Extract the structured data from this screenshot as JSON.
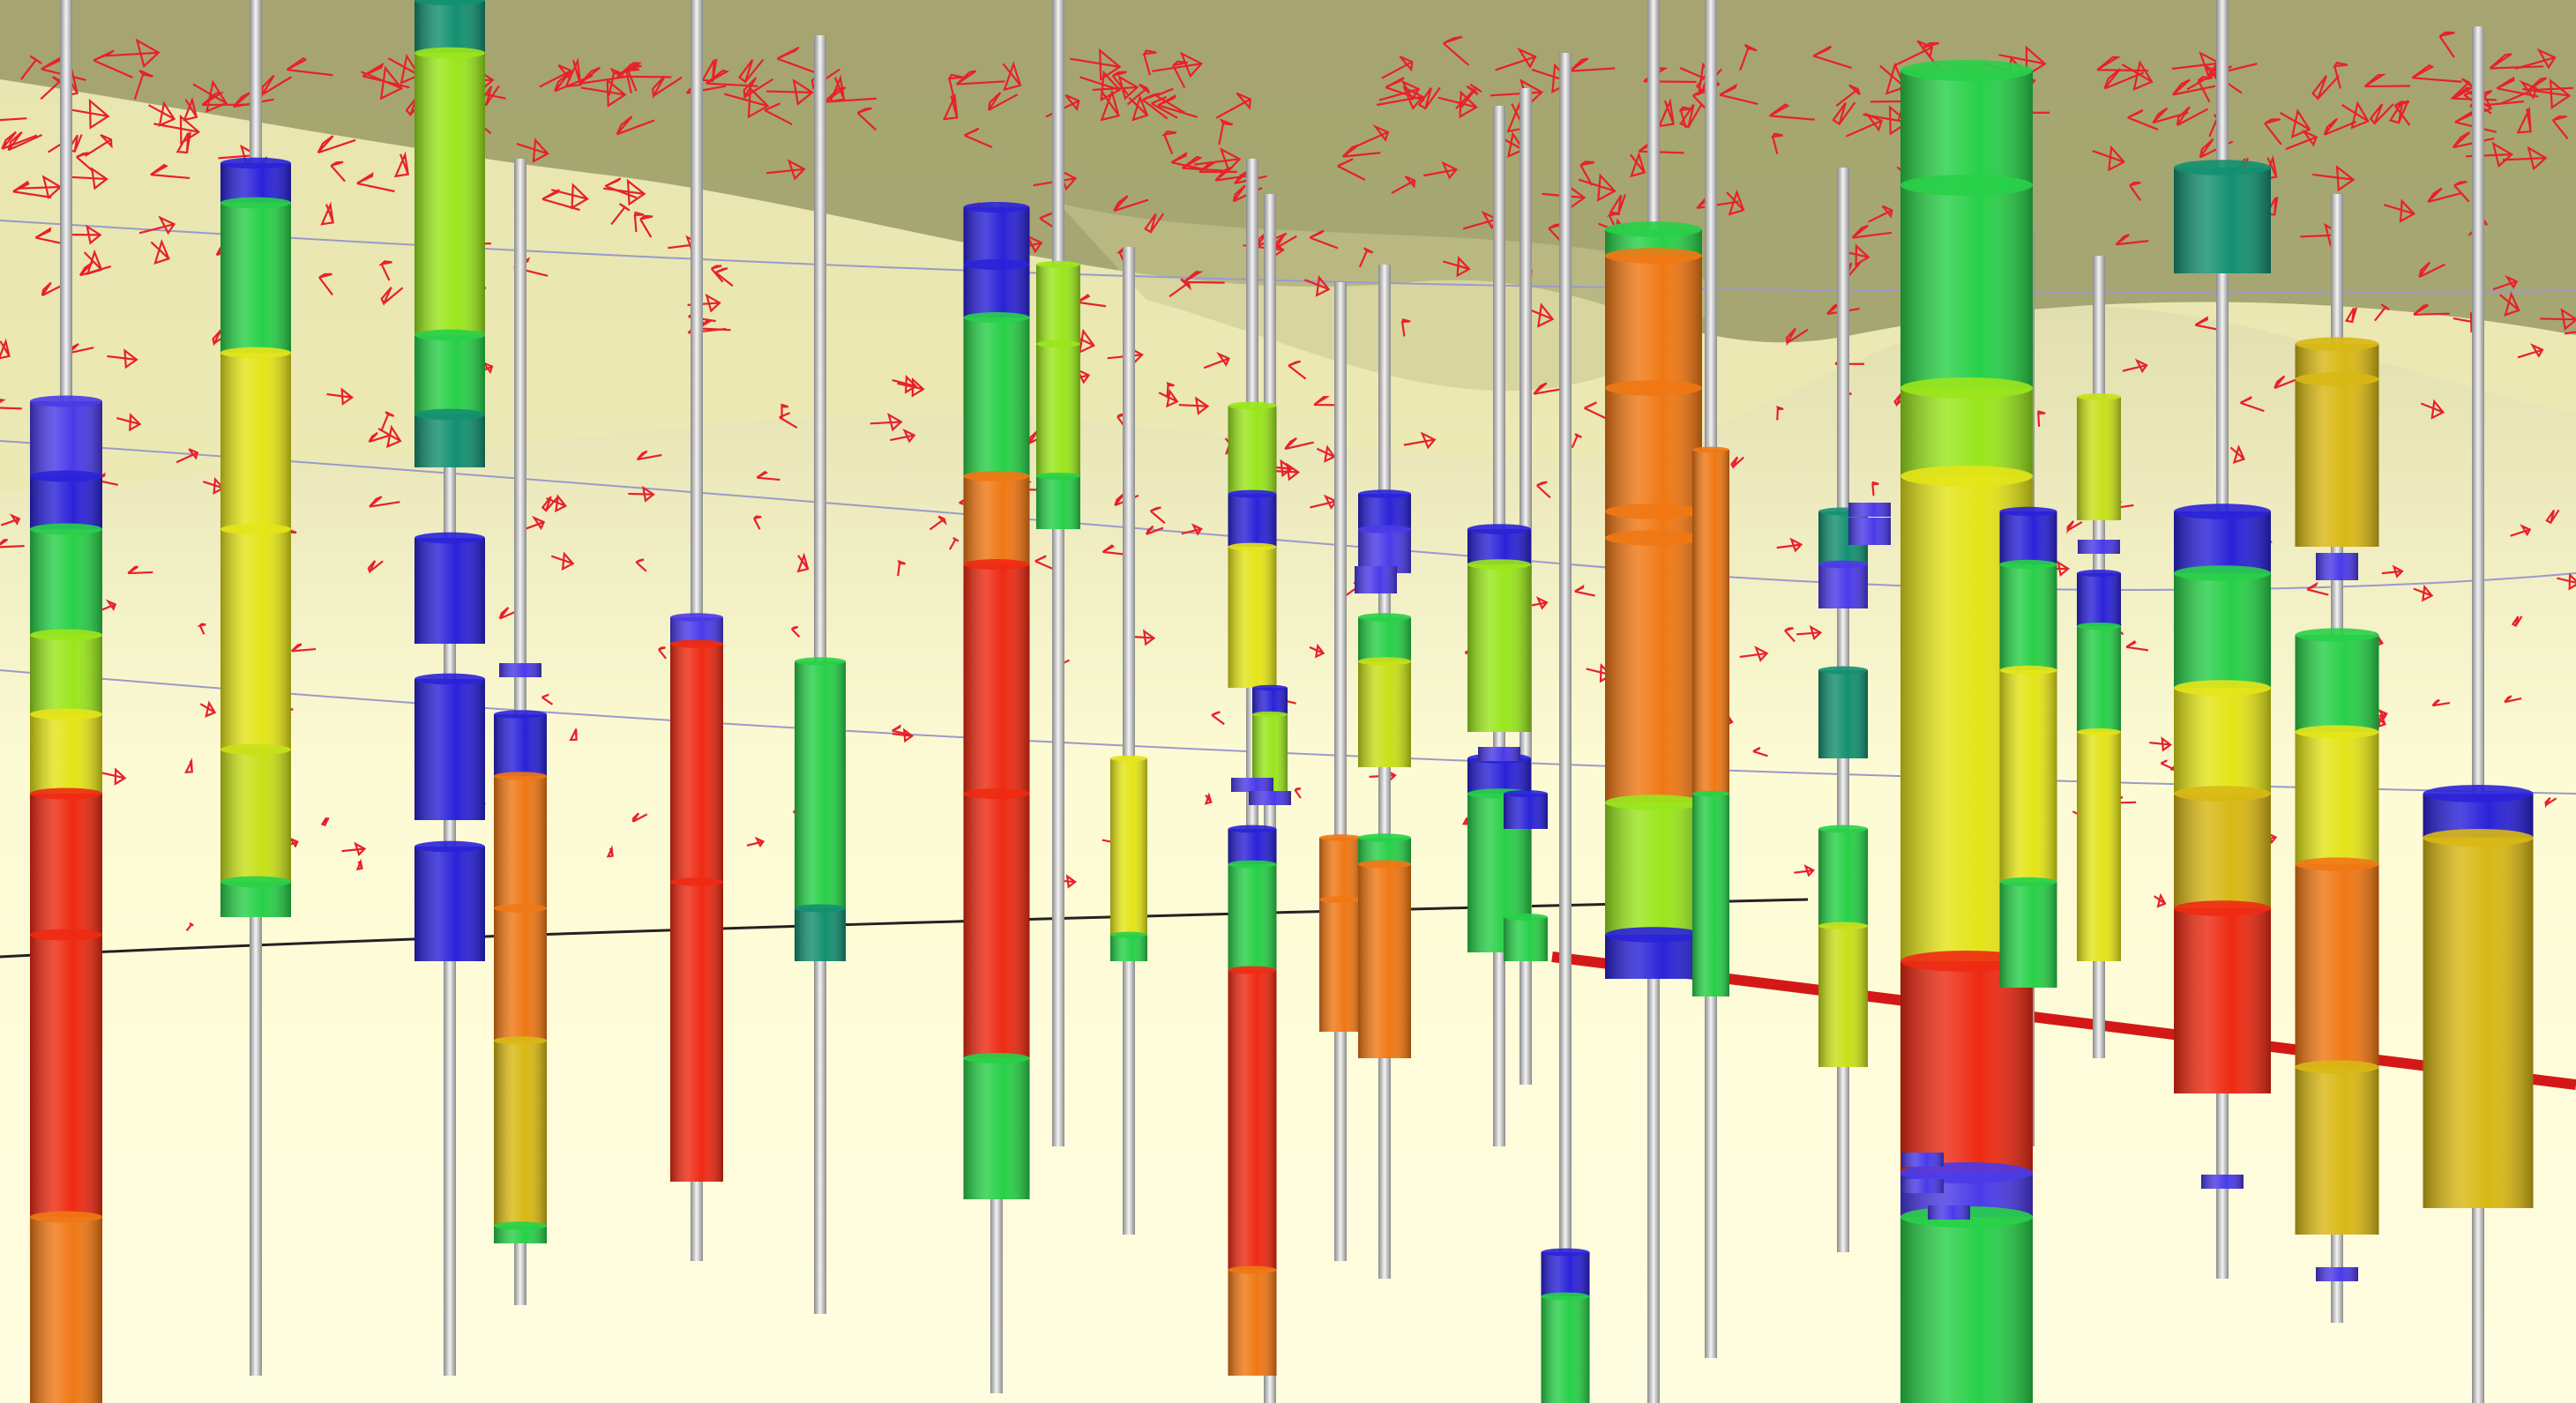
{
  "scene": {
    "palette": {
      "background": "#fdfbd4",
      "surface_overlay": "#9a9a66",
      "surface_light": "#ece9b4",
      "grid_line": "#9a9acc",
      "arrow": "#e8202a",
      "section_line": "#d41818",
      "rod": "#d9d9d9",
      "blue": "#2a22d8",
      "green": "#28d048",
      "yellow": "#e4e418",
      "orange": "#f07814",
      "red": "#ee2a12",
      "teal": "#139070"
    }
  }
}
